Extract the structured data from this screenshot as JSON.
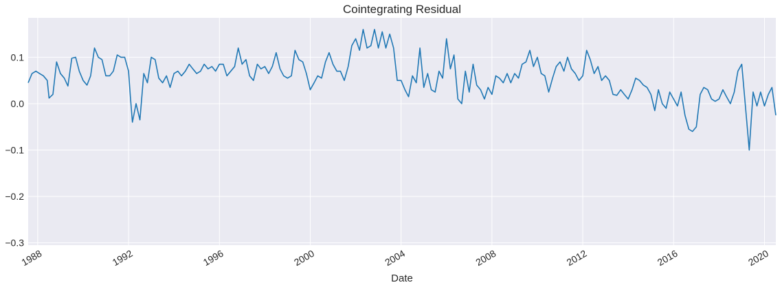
{
  "chart_data": {
    "type": "line",
    "title": "Cointegrating Residual",
    "xlabel": "Date",
    "ylabel": "",
    "xlim": [
      1987.58,
      2020.5
    ],
    "ylim": [
      -0.305,
      0.185
    ],
    "grid": true,
    "x_ticks": [
      {
        "value": 1988,
        "label": "1988"
      },
      {
        "value": 1992,
        "label": "1992"
      },
      {
        "value": 1996,
        "label": "1996"
      },
      {
        "value": 2000,
        "label": "2000"
      },
      {
        "value": 2004,
        "label": "2004"
      },
      {
        "value": 2008,
        "label": "2008"
      },
      {
        "value": 2012,
        "label": "2012"
      },
      {
        "value": 2016,
        "label": "2016"
      },
      {
        "value": 2020,
        "label": "2020"
      }
    ],
    "y_ticks": [
      {
        "value": 0.1,
        "label": "0.1"
      },
      {
        "value": 0.0,
        "label": "0.0"
      },
      {
        "value": -0.1,
        "label": "−0.1"
      },
      {
        "value": -0.2,
        "label": "−0.2"
      },
      {
        "value": -0.3,
        "label": "−0.3"
      }
    ],
    "series": [
      {
        "color": "#1f77b4",
        "points": [
          [
            1987.58,
            0.045
          ],
          [
            1987.75,
            0.065
          ],
          [
            1987.92,
            0.07
          ],
          [
            1988.08,
            0.065
          ],
          [
            1988.25,
            0.06
          ],
          [
            1988.42,
            0.05
          ],
          [
            1988.5,
            0.012
          ],
          [
            1988.67,
            0.02
          ],
          [
            1988.83,
            0.09
          ],
          [
            1989.0,
            0.065
          ],
          [
            1989.17,
            0.055
          ],
          [
            1989.33,
            0.038
          ],
          [
            1989.5,
            0.098
          ],
          [
            1989.67,
            0.1
          ],
          [
            1989.83,
            0.07
          ],
          [
            1990.0,
            0.05
          ],
          [
            1990.17,
            0.04
          ],
          [
            1990.33,
            0.06
          ],
          [
            1990.5,
            0.12
          ],
          [
            1990.67,
            0.1
          ],
          [
            1990.83,
            0.095
          ],
          [
            1991.0,
            0.06
          ],
          [
            1991.17,
            0.06
          ],
          [
            1991.33,
            0.07
          ],
          [
            1991.5,
            0.105
          ],
          [
            1991.67,
            0.1
          ],
          [
            1991.83,
            0.1
          ],
          [
            1992.0,
            0.07
          ],
          [
            1992.08,
            0.015
          ],
          [
            1992.17,
            -0.04
          ],
          [
            1992.33,
            0.0
          ],
          [
            1992.5,
            -0.035
          ],
          [
            1992.67,
            0.065
          ],
          [
            1992.83,
            0.045
          ],
          [
            1993.0,
            0.1
          ],
          [
            1993.17,
            0.095
          ],
          [
            1993.33,
            0.055
          ],
          [
            1993.5,
            0.045
          ],
          [
            1993.67,
            0.06
          ],
          [
            1993.83,
            0.035
          ],
          [
            1994.0,
            0.065
          ],
          [
            1994.17,
            0.07
          ],
          [
            1994.33,
            0.06
          ],
          [
            1994.5,
            0.07
          ],
          [
            1994.67,
            0.085
          ],
          [
            1994.83,
            0.075
          ],
          [
            1995.0,
            0.065
          ],
          [
            1995.17,
            0.07
          ],
          [
            1995.33,
            0.085
          ],
          [
            1995.5,
            0.075
          ],
          [
            1995.67,
            0.08
          ],
          [
            1995.83,
            0.07
          ],
          [
            1996.0,
            0.085
          ],
          [
            1996.17,
            0.085
          ],
          [
            1996.33,
            0.06
          ],
          [
            1996.5,
            0.07
          ],
          [
            1996.67,
            0.08
          ],
          [
            1996.83,
            0.12
          ],
          [
            1997.0,
            0.085
          ],
          [
            1997.17,
            0.095
          ],
          [
            1997.33,
            0.06
          ],
          [
            1997.5,
            0.05
          ],
          [
            1997.67,
            0.085
          ],
          [
            1997.83,
            0.075
          ],
          [
            1998.0,
            0.08
          ],
          [
            1998.17,
            0.065
          ],
          [
            1998.33,
            0.08
          ],
          [
            1998.5,
            0.11
          ],
          [
            1998.67,
            0.075
          ],
          [
            1998.83,
            0.06
          ],
          [
            1999.0,
            0.055
          ],
          [
            1999.17,
            0.06
          ],
          [
            1999.33,
            0.115
          ],
          [
            1999.5,
            0.095
          ],
          [
            1999.67,
            0.09
          ],
          [
            1999.83,
            0.065
          ],
          [
            2000.0,
            0.03
          ],
          [
            2000.17,
            0.045
          ],
          [
            2000.33,
            0.06
          ],
          [
            2000.5,
            0.055
          ],
          [
            2000.67,
            0.09
          ],
          [
            2000.83,
            0.11
          ],
          [
            2001.0,
            0.085
          ],
          [
            2001.17,
            0.07
          ],
          [
            2001.33,
            0.07
          ],
          [
            2001.5,
            0.05
          ],
          [
            2001.67,
            0.08
          ],
          [
            2001.83,
            0.125
          ],
          [
            2002.0,
            0.14
          ],
          [
            2002.17,
            0.115
          ],
          [
            2002.33,
            0.16
          ],
          [
            2002.5,
            0.12
          ],
          [
            2002.67,
            0.125
          ],
          [
            2002.83,
            0.16
          ],
          [
            2003.0,
            0.12
          ],
          [
            2003.17,
            0.155
          ],
          [
            2003.33,
            0.12
          ],
          [
            2003.5,
            0.15
          ],
          [
            2003.67,
            0.12
          ],
          [
            2003.83,
            0.05
          ],
          [
            2004.0,
            0.05
          ],
          [
            2004.17,
            0.03
          ],
          [
            2004.33,
            0.015
          ],
          [
            2004.5,
            0.06
          ],
          [
            2004.67,
            0.045
          ],
          [
            2004.83,
            0.12
          ],
          [
            2005.0,
            0.035
          ],
          [
            2005.17,
            0.065
          ],
          [
            2005.33,
            0.03
          ],
          [
            2005.5,
            0.025
          ],
          [
            2005.67,
            0.07
          ],
          [
            2005.83,
            0.055
          ],
          [
            2006.0,
            0.14
          ],
          [
            2006.17,
            0.075
          ],
          [
            2006.33,
            0.105
          ],
          [
            2006.5,
            0.01
          ],
          [
            2006.67,
            0.0
          ],
          [
            2006.83,
            0.07
          ],
          [
            2007.0,
            0.025
          ],
          [
            2007.17,
            0.085
          ],
          [
            2007.33,
            0.04
          ],
          [
            2007.5,
            0.03
          ],
          [
            2007.67,
            0.01
          ],
          [
            2007.83,
            0.035
          ],
          [
            2008.0,
            0.02
          ],
          [
            2008.17,
            0.06
          ],
          [
            2008.33,
            0.055
          ],
          [
            2008.5,
            0.045
          ],
          [
            2008.67,
            0.065
          ],
          [
            2008.83,
            0.045
          ],
          [
            2009.0,
            0.065
          ],
          [
            2009.17,
            0.055
          ],
          [
            2009.33,
            0.085
          ],
          [
            2009.5,
            0.09
          ],
          [
            2009.67,
            0.115
          ],
          [
            2009.83,
            0.08
          ],
          [
            2010.0,
            0.1
          ],
          [
            2010.17,
            0.065
          ],
          [
            2010.33,
            0.06
          ],
          [
            2010.5,
            0.025
          ],
          [
            2010.67,
            0.055
          ],
          [
            2010.83,
            0.08
          ],
          [
            2011.0,
            0.09
          ],
          [
            2011.17,
            0.07
          ],
          [
            2011.33,
            0.1
          ],
          [
            2011.5,
            0.075
          ],
          [
            2011.67,
            0.065
          ],
          [
            2011.83,
            0.05
          ],
          [
            2012.0,
            0.06
          ],
          [
            2012.17,
            0.115
          ],
          [
            2012.33,
            0.095
          ],
          [
            2012.5,
            0.065
          ],
          [
            2012.67,
            0.08
          ],
          [
            2012.83,
            0.05
          ],
          [
            2013.0,
            0.06
          ],
          [
            2013.17,
            0.05
          ],
          [
            2013.33,
            0.02
          ],
          [
            2013.5,
            0.018
          ],
          [
            2013.67,
            0.03
          ],
          [
            2013.83,
            0.02
          ],
          [
            2014.0,
            0.01
          ],
          [
            2014.17,
            0.03
          ],
          [
            2014.33,
            0.055
          ],
          [
            2014.5,
            0.05
          ],
          [
            2014.67,
            0.04
          ],
          [
            2014.83,
            0.035
          ],
          [
            2015.0,
            0.02
          ],
          [
            2015.17,
            -0.015
          ],
          [
            2015.33,
            0.03
          ],
          [
            2015.5,
            0.0
          ],
          [
            2015.67,
            -0.01
          ],
          [
            2015.83,
            0.025
          ],
          [
            2016.0,
            0.01
          ],
          [
            2016.17,
            -0.005
          ],
          [
            2016.33,
            0.025
          ],
          [
            2016.5,
            -0.025
          ],
          [
            2016.67,
            -0.055
          ],
          [
            2016.83,
            -0.06
          ],
          [
            2017.0,
            -0.05
          ],
          [
            2017.17,
            0.02
          ],
          [
            2017.33,
            0.035
          ],
          [
            2017.5,
            0.03
          ],
          [
            2017.67,
            0.01
          ],
          [
            2017.83,
            0.005
          ],
          [
            2018.0,
            0.01
          ],
          [
            2018.17,
            0.03
          ],
          [
            2018.33,
            0.015
          ],
          [
            2018.5,
            0.0
          ],
          [
            2018.67,
            0.025
          ],
          [
            2018.83,
            0.07
          ],
          [
            2019.0,
            0.085
          ],
          [
            2019.17,
            -0.01
          ],
          [
            2019.33,
            -0.1
          ],
          [
            2019.5,
            0.025
          ],
          [
            2019.67,
            -0.005
          ],
          [
            2019.83,
            0.025
          ],
          [
            2020.0,
            -0.005
          ],
          [
            2020.17,
            0.02
          ],
          [
            2020.33,
            0.035
          ],
          [
            2020.5,
            -0.025
          ]
        ]
      }
    ]
  }
}
